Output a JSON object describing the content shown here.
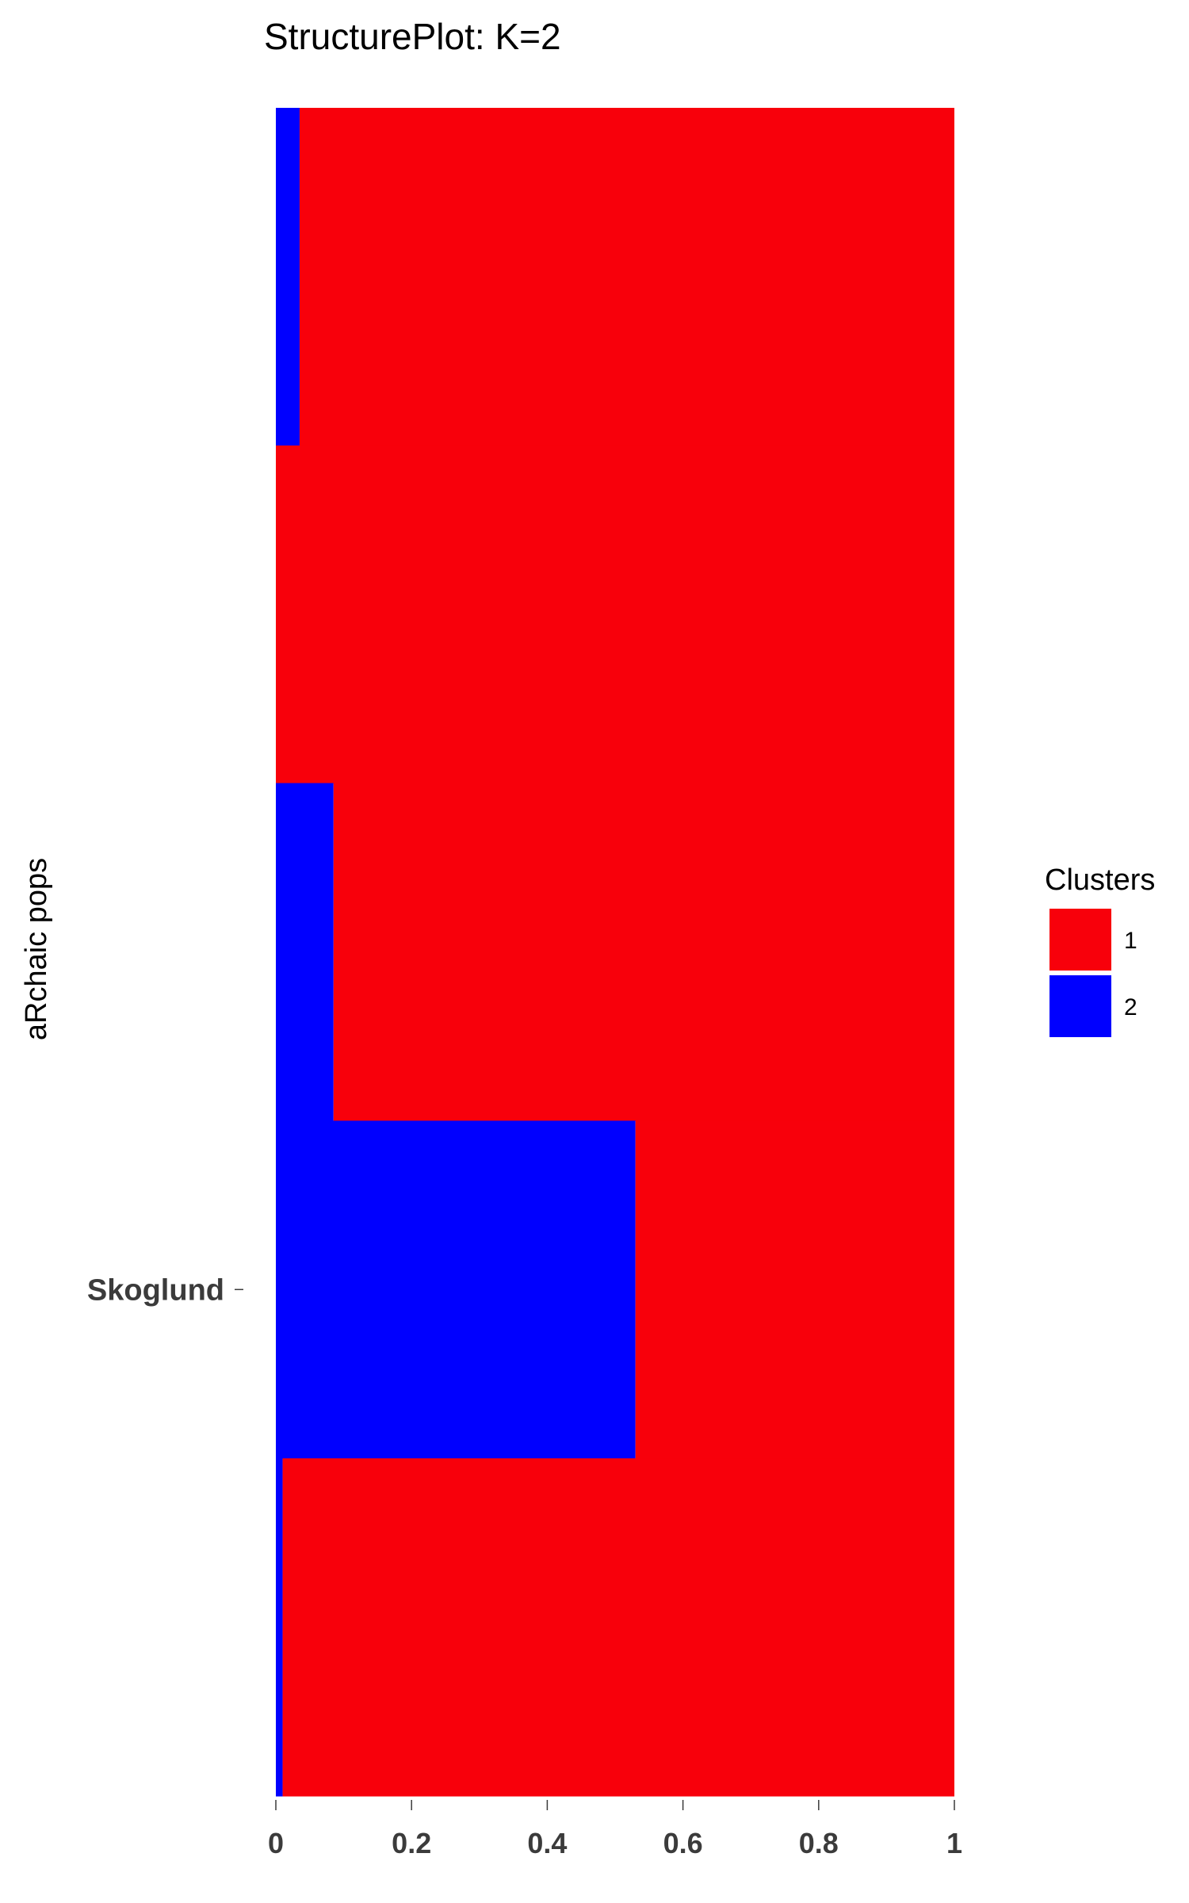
{
  "chart_data": {
    "type": "bar",
    "orientation": "horizontal-stacked",
    "title": "StructurePlot: K=2",
    "xlabel": "",
    "ylabel": "aRchaic pops",
    "xlim": [
      0,
      1
    ],
    "x_ticks": [
      0,
      0.2,
      0.4,
      0.6,
      0.8,
      1
    ],
    "x_tick_labels": [
      "0",
      "0.2",
      "0.4",
      "0.6",
      "0.8",
      "1"
    ],
    "y_tick_labels": [
      "Skoglund"
    ],
    "y_tick_sample": 4,
    "samples": [
      1,
      2,
      3,
      4,
      5
    ],
    "series": [
      {
        "name": "2",
        "color": "#0000ff",
        "values": [
          0.035,
          0.0,
          0.085,
          0.53,
          0.01
        ]
      },
      {
        "name": "1",
        "color": "#f8000b",
        "values": [
          0.965,
          1.0,
          0.915,
          0.47,
          0.99
        ]
      }
    ],
    "legend": {
      "title": "Clusters",
      "position": "right",
      "entries": [
        {
          "label": "1",
          "color": "#f8000b"
        },
        {
          "label": "2",
          "color": "#0000ff"
        }
      ]
    },
    "grid": false
  }
}
